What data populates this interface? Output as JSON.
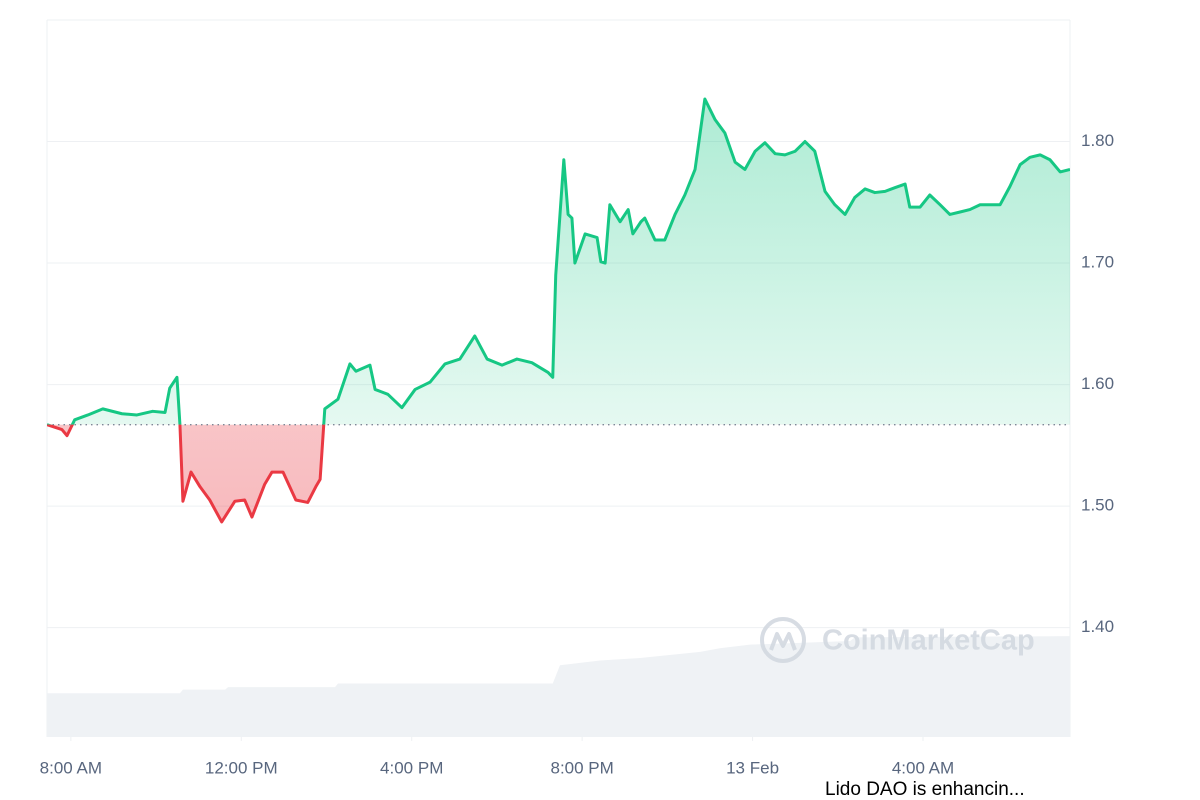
{
  "chart_data": {
    "type": "line",
    "x": [
      -0.56,
      -0.21,
      -0.09,
      0.09,
      0.4,
      0.75,
      1.2,
      1.55,
      1.92,
      2.21,
      2.32,
      2.49,
      2.56,
      2.63,
      2.82,
      3.03,
      3.26,
      3.54,
      3.85,
      4.08,
      4.25,
      4.55,
      4.72,
      4.98,
      5.28,
      5.56,
      5.75,
      5.85,
      5.96,
      6.27,
      6.55,
      6.69,
      7.02,
      7.14,
      7.44,
      7.77,
      8.08,
      8.43,
      8.78,
      9.13,
      9.48,
      9.77,
      10.12,
      10.47,
      10.82,
      11.2,
      11.31,
      11.38,
      11.57,
      11.67,
      11.76,
      11.83,
      12.07,
      12.35,
      12.44,
      12.54,
      12.65,
      12.89,
      13.08,
      13.19,
      13.38,
      13.47,
      13.71,
      13.94,
      14.18,
      14.41,
      14.65,
      14.88,
      15.12,
      15.35,
      15.59,
      15.82,
      16.06,
      16.29,
      16.53,
      16.76,
      17.0,
      17.23,
      17.46,
      17.7,
      17.93,
      18.17,
      18.4,
      18.64,
      18.87,
      19.11,
      19.34,
      19.58,
      19.69,
      19.93,
      20.16,
      20.4,
      20.63,
      20.87,
      21.1,
      21.34,
      21.57,
      21.81,
      22.04,
      22.28,
      22.51,
      22.75,
      22.98,
      23.22,
      23.45
    ],
    "values": [
      1.567,
      1.563,
      1.558,
      1.571,
      1.575,
      1.58,
      1.576,
      1.575,
      1.578,
      1.577,
      1.597,
      1.606,
      1.567,
      1.504,
      1.528,
      1.516,
      1.505,
      1.487,
      1.504,
      1.505,
      1.491,
      1.518,
      1.528,
      1.528,
      1.505,
      1.503,
      1.516,
      1.522,
      1.58,
      1.588,
      1.617,
      1.611,
      1.616,
      1.596,
      1.592,
      1.581,
      1.596,
      1.602,
      1.617,
      1.621,
      1.64,
      1.621,
      1.616,
      1.621,
      1.618,
      1.61,
      1.606,
      1.69,
      1.785,
      1.74,
      1.737,
      1.7,
      1.724,
      1.721,
      1.701,
      1.7,
      1.748,
      1.734,
      1.744,
      1.724,
      1.734,
      1.737,
      1.719,
      1.719,
      1.74,
      1.756,
      1.777,
      1.835,
      1.818,
      1.807,
      1.783,
      1.777,
      1.792,
      1.799,
      1.79,
      1.789,
      1.792,
      1.8,
      1.792,
      1.759,
      1.748,
      1.74,
      1.754,
      1.761,
      1.758,
      1.759,
      1.762,
      1.765,
      1.746,
      1.746,
      1.756,
      1.748,
      1.74,
      1.742,
      1.744,
      1.748,
      1.748,
      1.748,
      1.763,
      1.781,
      1.787,
      1.789,
      1.785,
      1.775,
      1.777
    ],
    "baseline": 1.567,
    "up_color": "#16c784",
    "down_color": "#ea3943",
    "volume": {
      "color": "#eff2f5",
      "x": [
        -0.56,
        2.56,
        2.63,
        3.62,
        3.69,
        6.2,
        6.27,
        11.31,
        11.48,
        12.42,
        13.36,
        14.77,
        15.23,
        15.94,
        18.29,
        18.4,
        23.45
      ],
      "values": [
        1.346,
        1.346,
        1.349,
        1.349,
        1.351,
        1.351,
        1.354,
        1.354,
        1.369,
        1.373,
        1.375,
        1.38,
        1.383,
        1.386,
        1.389,
        1.392,
        1.393
      ]
    },
    "xlim": [
      -0.56,
      23.45
    ],
    "xticks": [
      {
        "value": 0,
        "label": "8:00 AM"
      },
      {
        "value": 4,
        "label": "12:00 PM"
      },
      {
        "value": 8,
        "label": "4:00 PM"
      },
      {
        "value": 12,
        "label": "8:00 PM"
      },
      {
        "value": 16,
        "label": "13 Feb"
      },
      {
        "value": 20,
        "label": "4:00 AM"
      }
    ],
    "ylim": [
      1.31,
      1.9
    ],
    "yticks": [
      {
        "value": 1.4,
        "label": "1.40"
      },
      {
        "value": 1.5,
        "label": "1.50"
      },
      {
        "value": 1.6,
        "label": "1.60"
      },
      {
        "value": 1.7,
        "label": "1.70"
      },
      {
        "value": 1.8,
        "label": "1.80"
      }
    ],
    "grid": true,
    "watermark": "CoinMarketCap",
    "news_ticker": "Lido DAO is enhancin..."
  }
}
